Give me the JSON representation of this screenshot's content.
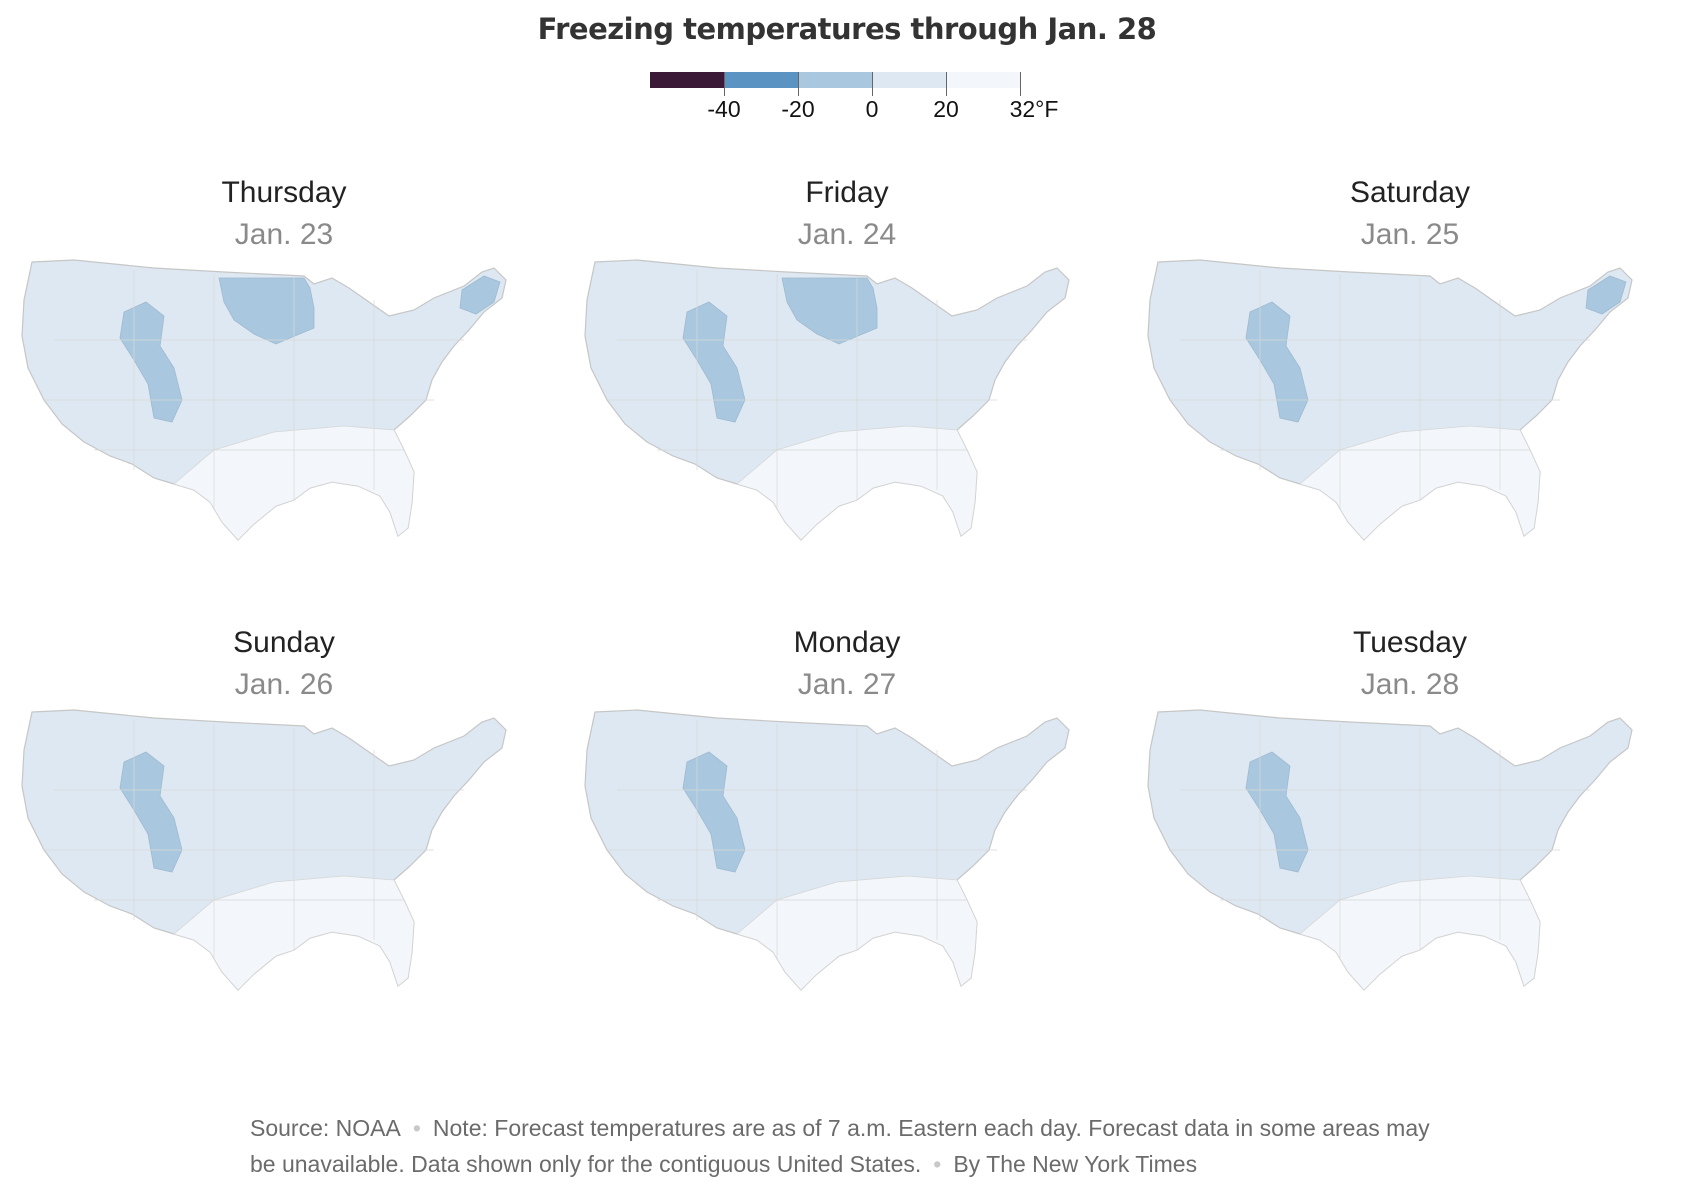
{
  "title": "Freezing temperatures through Jan. 28",
  "legend": {
    "unit": "°F",
    "bins": [
      {
        "from": -60,
        "to": -40,
        "color": "#3b1a38"
      },
      {
        "from": -40,
        "to": -20,
        "color": "#5b93c3"
      },
      {
        "from": -20,
        "to": 0,
        "color": "#a9c8df"
      },
      {
        "from": 0,
        "to": 20,
        "color": "#dde8f2"
      },
      {
        "from": 20,
        "to": 32,
        "color": "#f3f7fb"
      }
    ],
    "tick_labels": [
      "-40",
      "-20",
      "0",
      "20",
      "32°F"
    ]
  },
  "days": [
    {
      "day": "Thursday",
      "date": "Jan. 23",
      "zones": [
        {
          "band": 2,
          "region": "upper-midwest"
        },
        {
          "band": 2,
          "region": "rockies"
        },
        {
          "band": 2,
          "region": "northeast"
        }
      ]
    },
    {
      "day": "Friday",
      "date": "Jan. 24",
      "zones": [
        {
          "band": 2,
          "region": "upper-midwest"
        },
        {
          "band": 2,
          "region": "rockies"
        }
      ]
    },
    {
      "day": "Saturday",
      "date": "Jan. 25",
      "zones": [
        {
          "band": 2,
          "region": "rockies"
        },
        {
          "band": 2,
          "region": "northeast"
        }
      ]
    },
    {
      "day": "Sunday",
      "date": "Jan. 26",
      "zones": [
        {
          "band": 2,
          "region": "rockies"
        }
      ]
    },
    {
      "day": "Monday",
      "date": "Jan. 27",
      "zones": [
        {
          "band": 2,
          "region": "rockies"
        }
      ]
    },
    {
      "day": "Tuesday",
      "date": "Jan. 28",
      "zones": [
        {
          "band": 2,
          "region": "rockies"
        }
      ]
    }
  ],
  "footer": {
    "source": "Source: NOAA",
    "note": "Note: Forecast temperatures are as of 7 a.m. Eastern each day. Forecast data in some areas may be unavailable. Data shown only for the contiguous United States.",
    "credit": "By The New York Times"
  }
}
